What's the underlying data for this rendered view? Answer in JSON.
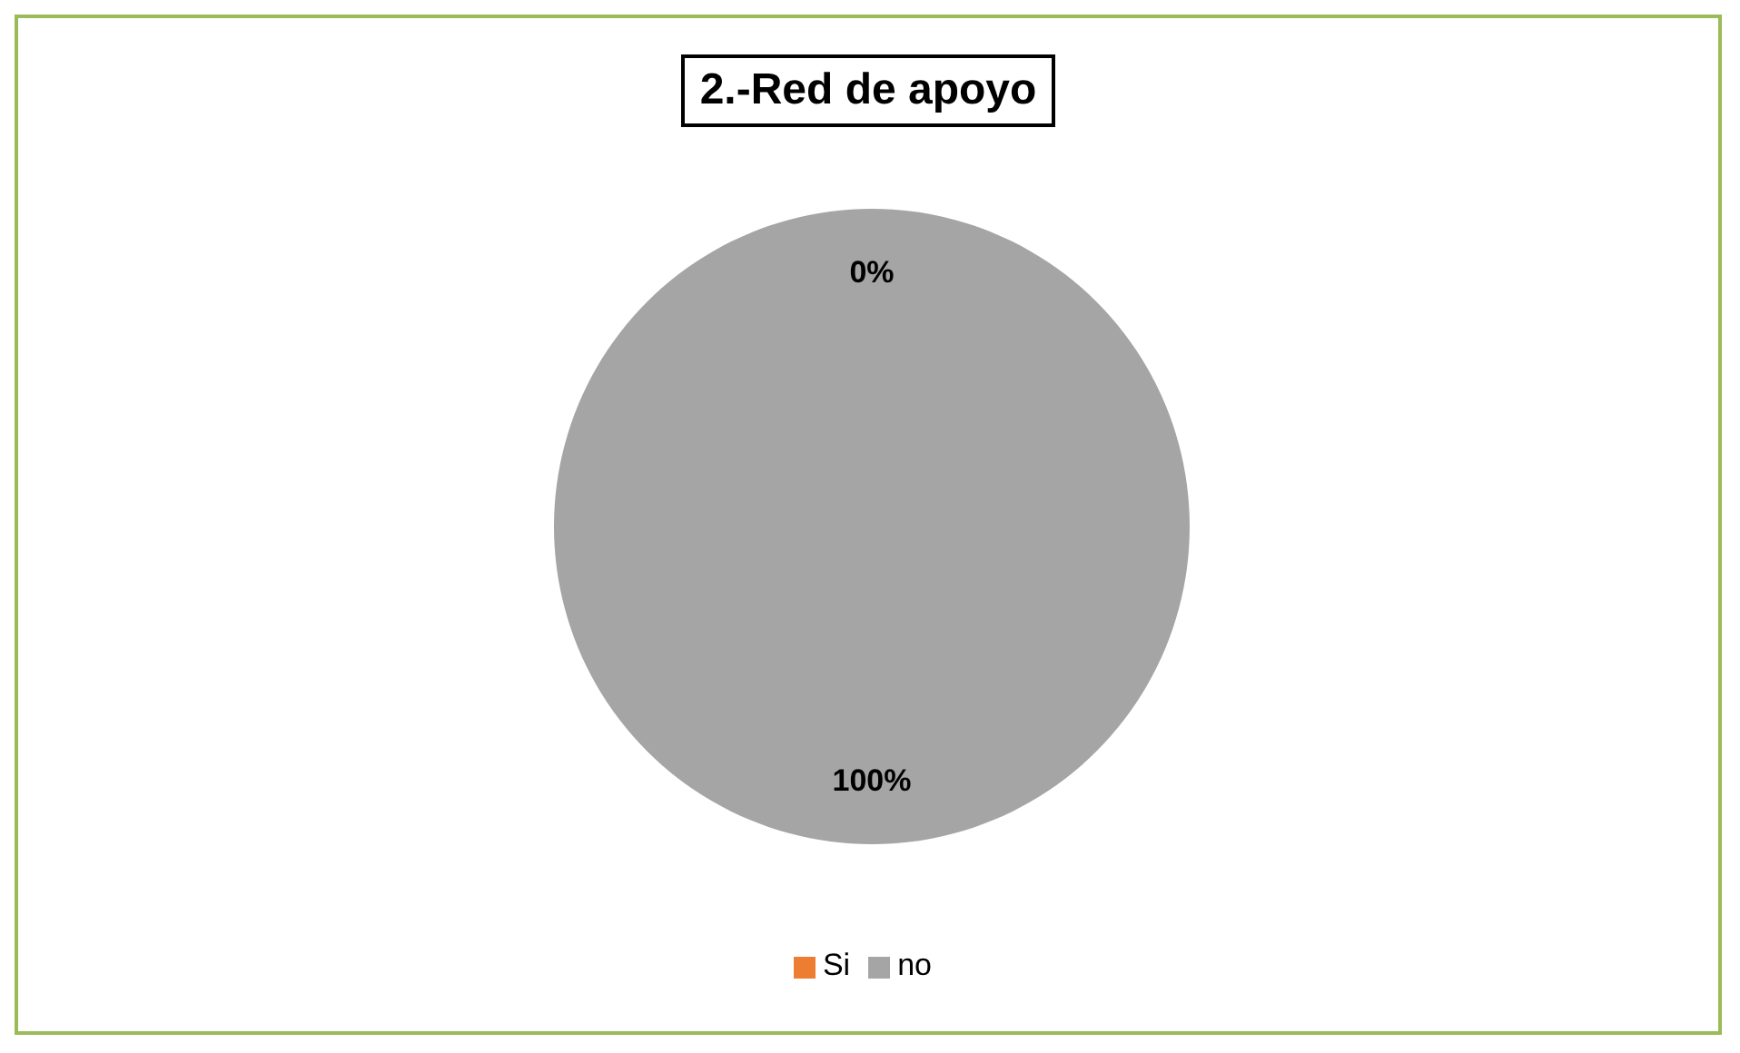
{
  "chart_data": {
    "type": "pie",
    "title": "2.-Red de apoyo",
    "categories": [
      "Si",
      "no"
    ],
    "values": [
      0,
      100
    ],
    "colors": [
      "#ed7d31",
      "#a5a5a5"
    ],
    "value_labels": [
      "0%",
      "100%"
    ],
    "legend": "bottom"
  }
}
